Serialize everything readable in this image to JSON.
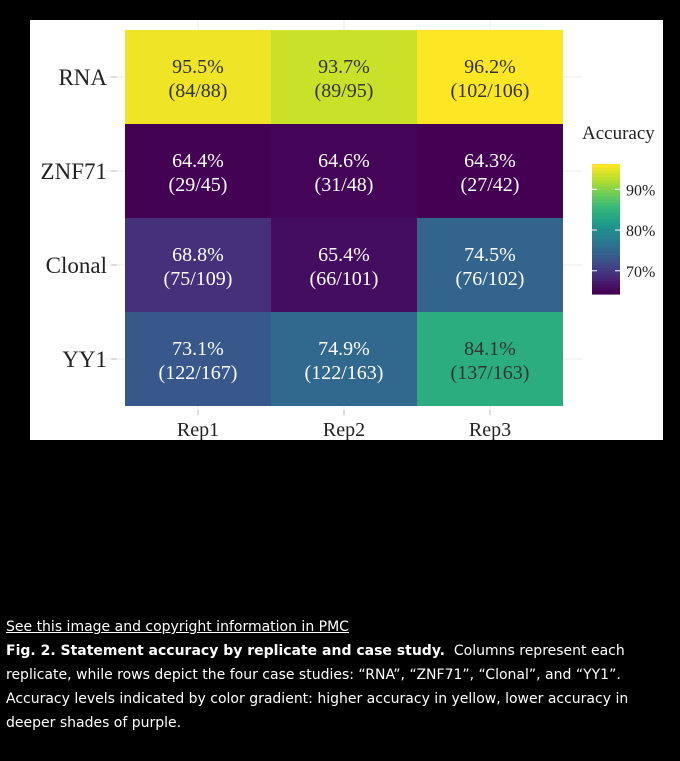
{
  "caption": {
    "pmc_link": "See this image and copyright information in PMC",
    "fig_label": "Fig. 2. Statement accuracy by replicate and case study.",
    "text": "Columns represent each replicate, while rows depict the four case studies: “RNA”, “ZNF71”, “Clonal”, and “YY1”. Accuracy levels indicated by color gradient: higher accuracy in yellow, lower accuracy in deeper shades of purple."
  },
  "chart_data": {
    "type": "heatmap",
    "columns": [
      "Rep1",
      "Rep2",
      "Rep3"
    ],
    "rows": [
      "RNA",
      "ZNF71",
      "Clonal",
      "YY1"
    ],
    "cells": [
      [
        {
          "pct": "95.5%",
          "frac": "(84/88)",
          "value": 95.5
        },
        {
          "pct": "93.7%",
          "frac": "(89/95)",
          "value": 93.7
        },
        {
          "pct": "96.2%",
          "frac": "(102/106)",
          "value": 96.2
        }
      ],
      [
        {
          "pct": "64.4%",
          "frac": "(29/45)",
          "value": 64.4
        },
        {
          "pct": "64.6%",
          "frac": "(31/48)",
          "value": 64.6
        },
        {
          "pct": "64.3%",
          "frac": "(27/42)",
          "value": 64.3
        }
      ],
      [
        {
          "pct": "68.8%",
          "frac": "(75/109)",
          "value": 68.8
        },
        {
          "pct": "65.4%",
          "frac": "(66/101)",
          "value": 65.4
        },
        {
          "pct": "74.5%",
          "frac": "(76/102)",
          "value": 74.5
        }
      ],
      [
        {
          "pct": "73.1%",
          "frac": "(122/167)",
          "value": 73.1
        },
        {
          "pct": "74.9%",
          "frac": "(122/163)",
          "value": 74.9
        },
        {
          "pct": "84.1%",
          "frac": "(137/163)",
          "value": 84.1
        }
      ]
    ],
    "legend": {
      "title": "Accuracy",
      "ticks": [
        {
          "label": "90%",
          "value": 90
        },
        {
          "label": "80%",
          "value": 80
        },
        {
          "label": "70%",
          "value": 70
        }
      ],
      "range": [
        64.3,
        96.2
      ]
    },
    "colormap": "viridis",
    "colors": [
      "#440154",
      "#482777",
      "#3e4989",
      "#31688e",
      "#26828e",
      "#1f9e89",
      "#35b779",
      "#6ece58",
      "#b5de2b",
      "#fde725"
    ]
  }
}
